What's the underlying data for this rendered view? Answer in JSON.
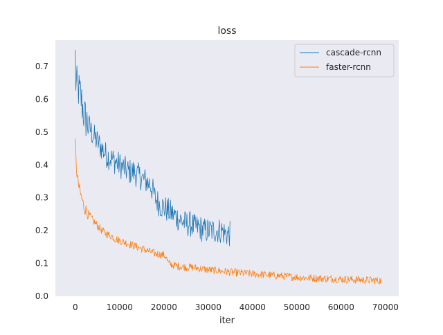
{
  "chart_data": {
    "type": "line",
    "title": "loss",
    "xlabel": "iter",
    "ylabel": "",
    "xlim": [
      -4500,
      73000
    ],
    "ylim": [
      0.0,
      0.78
    ],
    "xticks": [
      0,
      10000,
      20000,
      30000,
      40000,
      50000,
      60000,
      70000
    ],
    "xtick_labels": [
      "0",
      "10000",
      "20000",
      "30000",
      "40000",
      "50000",
      "60000",
      "70000"
    ],
    "yticks": [
      0.0,
      0.1,
      0.2,
      0.3,
      0.4,
      0.5,
      0.6,
      0.7
    ],
    "ytick_labels": [
      "0.0",
      "0.1",
      "0.2",
      "0.3",
      "0.4",
      "0.5",
      "0.6",
      "0.7"
    ],
    "grid": false,
    "legend_position": "top-right",
    "background": "#eaeaf2",
    "series": [
      {
        "name": "cascade-rcnn",
        "color": "#1f77b4",
        "x": [
          0,
          300,
          700,
          1200,
          2000,
          3000,
          4000,
          5000,
          6000,
          7000,
          8000,
          9000,
          10000,
          11000,
          12000,
          13000,
          14000,
          15000,
          16000,
          17000,
          18000,
          19000,
          20000,
          21000,
          22000,
          23000,
          24000,
          25000,
          26000,
          27000,
          28000,
          29000,
          30000,
          31000,
          32000,
          33000,
          34000,
          35000
        ],
        "y": [
          0.66,
          0.64,
          0.63,
          0.61,
          0.55,
          0.52,
          0.49,
          0.47,
          0.45,
          0.43,
          0.42,
          0.41,
          0.4,
          0.39,
          0.38,
          0.38,
          0.37,
          0.36,
          0.35,
          0.34,
          0.3,
          0.28,
          0.27,
          0.26,
          0.25,
          0.24,
          0.23,
          0.22,
          0.22,
          0.21,
          0.21,
          0.2,
          0.2,
          0.2,
          0.2,
          0.2,
          0.19,
          0.19
        ],
        "noise": 0.04
      },
      {
        "name": "faster-rcnn",
        "color": "#ff7f0e",
        "x": [
          0,
          300,
          700,
          1200,
          2000,
          3000,
          4000,
          5000,
          6000,
          7000,
          8000,
          9000,
          10000,
          12000,
          14000,
          16000,
          18000,
          20000,
          20500,
          21000,
          22000,
          24000,
          26000,
          28000,
          30000,
          32000,
          34000,
          36000,
          38000,
          40000,
          42000,
          44000,
          46000,
          48000,
          50000,
          52000,
          54000,
          56000,
          58000,
          60000,
          62000,
          64000,
          66000,
          68000,
          69000
        ],
        "y": [
          0.46,
          0.38,
          0.34,
          0.31,
          0.27,
          0.25,
          0.23,
          0.215,
          0.2,
          0.19,
          0.185,
          0.175,
          0.17,
          0.16,
          0.15,
          0.14,
          0.13,
          0.125,
          0.12,
          0.1,
          0.095,
          0.09,
          0.088,
          0.085,
          0.08,
          0.078,
          0.075,
          0.072,
          0.07,
          0.068,
          0.066,
          0.064,
          0.062,
          0.06,
          0.058,
          0.056,
          0.055,
          0.054,
          0.053,
          0.052,
          0.051,
          0.05,
          0.049,
          0.048,
          0.048
        ],
        "noise": 0.012
      }
    ]
  }
}
